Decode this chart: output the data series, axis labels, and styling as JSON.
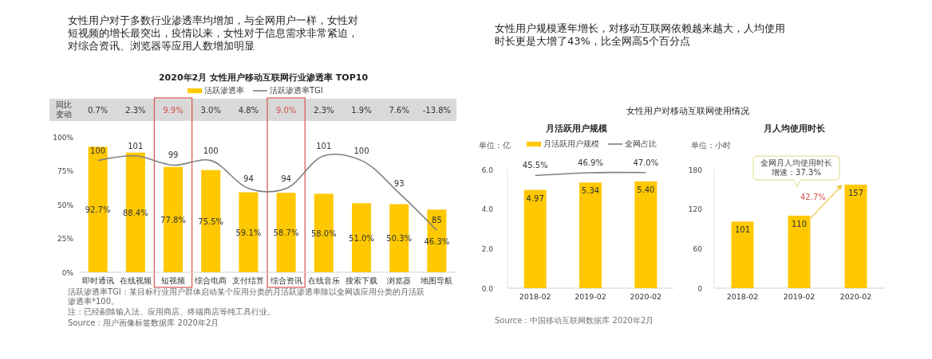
{
  "chart_data": [
    {
      "type": "bar",
      "title": "2020年2月 女性用户移动互联网行业渗透率 TOP10",
      "categories": [
        "即时通讯",
        "在线视频",
        "短视频",
        "综合电商",
        "支付结算",
        "综合资讯",
        "在线音乐",
        "搜索下载",
        "浏览器",
        "地图导航"
      ],
      "series": [
        {
          "name": "活跃渗透率",
          "color": "#ffc800",
          "values": [
            92.7,
            88.4,
            77.8,
            75.5,
            59.1,
            58.7,
            58.0,
            51.0,
            50.3,
            46.3
          ],
          "value_labels": [
            "92.7%",
            "88.4%",
            "77.8%",
            "75.5%",
            "59.1%",
            "58.7%",
            "58.0%",
            "51.0%",
            "50.3%",
            "46.3%"
          ]
        },
        {
          "name": "活跃渗透率TGI",
          "type": "line",
          "axis": "y2",
          "color": "#808080",
          "values": [
            100,
            101,
            99,
            100,
            94,
            94,
            101,
            100,
            93,
            85
          ],
          "value_labels": [
            "100",
            "101",
            "99",
            "100",
            "94",
            "94",
            "101",
            "100",
            "93",
            "85"
          ]
        }
      ],
      "ylim": [
        0,
        100
      ],
      "yticks": [
        {
          "value": 0,
          "label": "0%"
        },
        {
          "value": 25,
          "label": "25%"
        },
        {
          "value": 50,
          "label": "50%"
        },
        {
          "value": 75,
          "label": "75%"
        },
        {
          "value": 100,
          "label": "100%"
        }
      ],
      "legend": "top",
      "annotations": [
        "女性用户对于多数行业渗透率均增加，与全网用户一样，女性对短视频的增长最突出，疫情以来，女性对于信息需求非常紧迫，对综合资讯、浏览器等应用人数增加明显",
        "同比变动",
        "活跃渗透率TGI：某目标行业用户群体启动某个应用分类的月活跃渗透率除以全网该应用分类的月活跃渗透率*100。",
        "注：已经剔除输入法、应用商店、终端商店等纯工具行业。",
        "Source：用户画像标签数据库 2020年2月",
        "0.7%",
        "2.3%",
        "9.9%",
        "3.0%",
        "4.8%",
        "9.0%",
        "2.3%",
        "1.9%",
        "7.6%",
        "-13.8%"
      ]
    },
    {
      "type": "bar",
      "title": "月活跃用户规模",
      "ylabel": "单位：亿",
      "categories": [
        "2018-02",
        "2019-02",
        "2020-02"
      ],
      "series": [
        {
          "name": "月活跃用户规模",
          "color": "#ffc800",
          "values": [
            4.97,
            5.34,
            5.4
          ],
          "value_labels": [
            "4.97",
            "5.34",
            "5.40"
          ]
        },
        {
          "name": "全网占比",
          "type": "line",
          "axis": "y2",
          "color": "#808080",
          "values": [
            45.5,
            46.9,
            47.0
          ],
          "value_labels": [
            "45.5%",
            "46.9%",
            "47.0%"
          ]
        }
      ],
      "ylim": [
        0,
        6
      ],
      "yticks": [
        {
          "value": 0,
          "label": "0.0"
        },
        {
          "value": 2,
          "label": "2.0"
        },
        {
          "value": 4,
          "label": "4.0"
        },
        {
          "value": 6,
          "label": "6.0"
        }
      ],
      "legend": "top",
      "annotations": [
        "女性用户规模逐年增长，对移动互联网依赖越来越大，人均使用时长更是大增了43%，比全网高5个百分点",
        "女性用户对移动互联网使用情况",
        "Source：中国移动互联网数据库 2020年2月"
      ]
    },
    {
      "type": "bar",
      "title": "月人均使用时长",
      "ylabel": "单位：小时",
      "categories": [
        "2018-02",
        "2019-02",
        "2020-02"
      ],
      "series": [
        {
          "color": "#ffc800",
          "values": [
            101,
            110,
            157
          ],
          "value_labels": [
            "101",
            "110",
            "157"
          ]
        }
      ],
      "ylim": [
        0,
        180
      ],
      "yticks": [
        0,
        60,
        120,
        180
      ],
      "annotations": [
        "全网月人均使用时长增速：37.3%",
        "42.7%"
      ]
    }
  ]
}
